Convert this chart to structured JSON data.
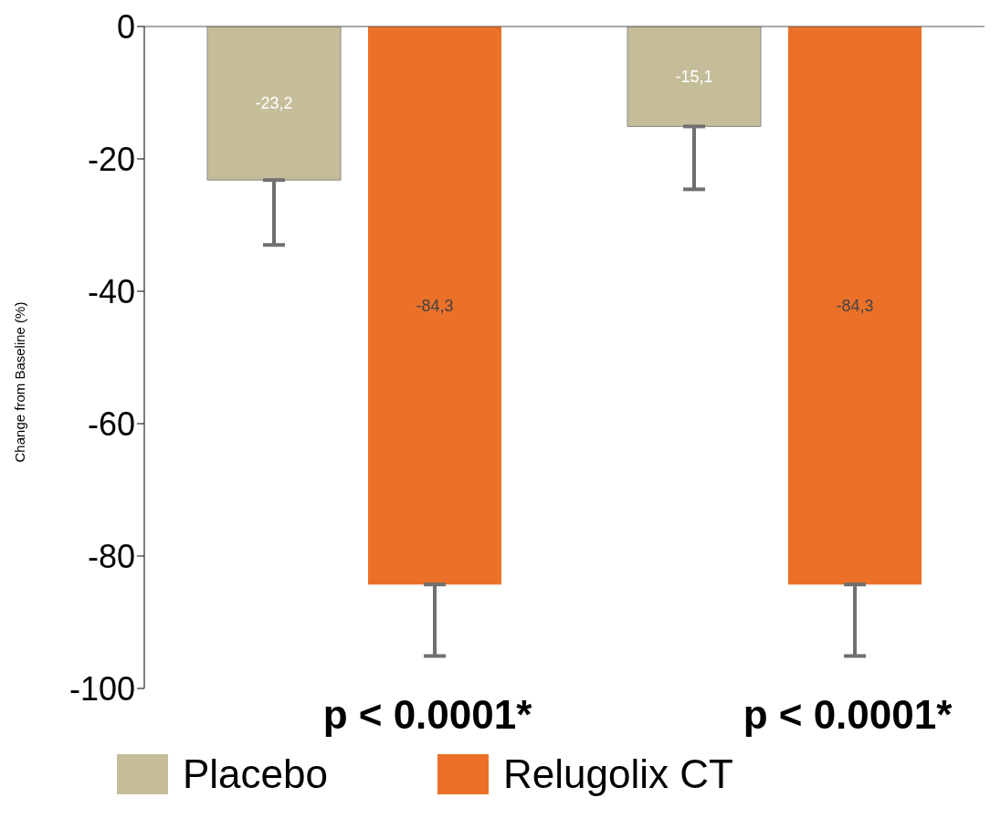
{
  "chart_data": {
    "type": "bar",
    "ylabel": "Change from Baseline (%)",
    "categories": [
      null,
      null
    ],
    "series": [
      {
        "name": "Placebo",
        "color": "#c5bd99",
        "values": [
          -23.2,
          -15.1
        ],
        "value_labels": [
          "-23,2",
          "-15,1"
        ],
        "errors": [
          [
            -33,
            -23.2
          ],
          [
            -24.6,
            -15.1
          ]
        ]
      },
      {
        "name": "Relugolix CT",
        "color": "#eb7128",
        "values": [
          -84.3,
          -84.3
        ],
        "value_labels": [
          "-84,3",
          "-84,3"
        ],
        "errors": [
          [
            -95.1,
            -84.3
          ],
          [
            -95.1,
            -84.3
          ]
        ]
      }
    ],
    "ylim": [
      -100,
      0
    ],
    "yticks": [
      -100,
      -80,
      -60,
      -40,
      -20,
      0
    ],
    "tick_labels": "y",
    "grid": false,
    "legend": "bottom",
    "annotations": [
      "p < 0.0001*",
      "p < 0.0001*"
    ]
  }
}
